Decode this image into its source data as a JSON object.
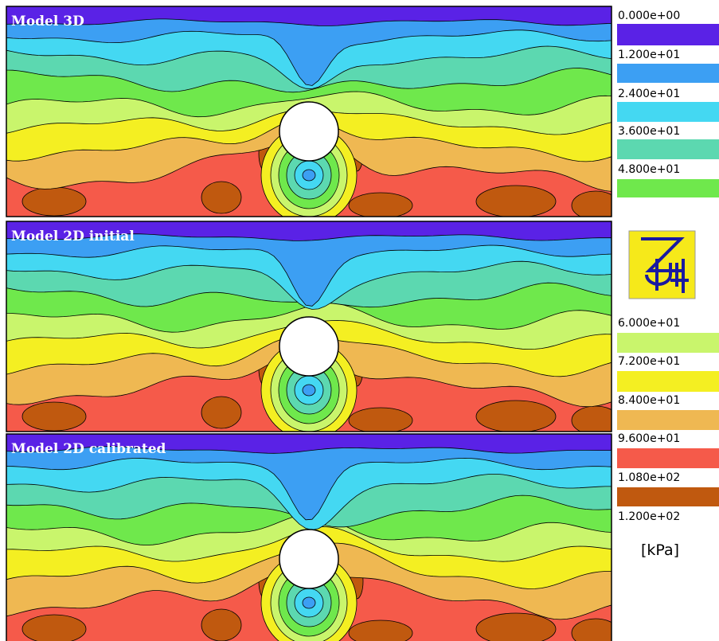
{
  "panels": [
    {
      "title": "Model 3D"
    },
    {
      "title": "Model 2D initial"
    },
    {
      "title": "Model 2D calibrated"
    }
  ],
  "legend": {
    "labels": [
      "0.000e+00",
      "1.200e+01",
      "2.400e+01",
      "3.600e+01",
      "4.800e+01",
      "6.000e+01",
      "7.200e+01",
      "8.400e+01",
      "9.600e+01",
      "1.080e+02",
      "1.200e+02"
    ],
    "colors": [
      "#5a22e6",
      "#3c9ff3",
      "#44d8f2",
      "#5cd8b0",
      "#6fe84c",
      "#c9f56c",
      "#f4ef22",
      "#efb852",
      "#f55a4a",
      "#c0590f"
    ],
    "unit": "[kPa]"
  }
}
